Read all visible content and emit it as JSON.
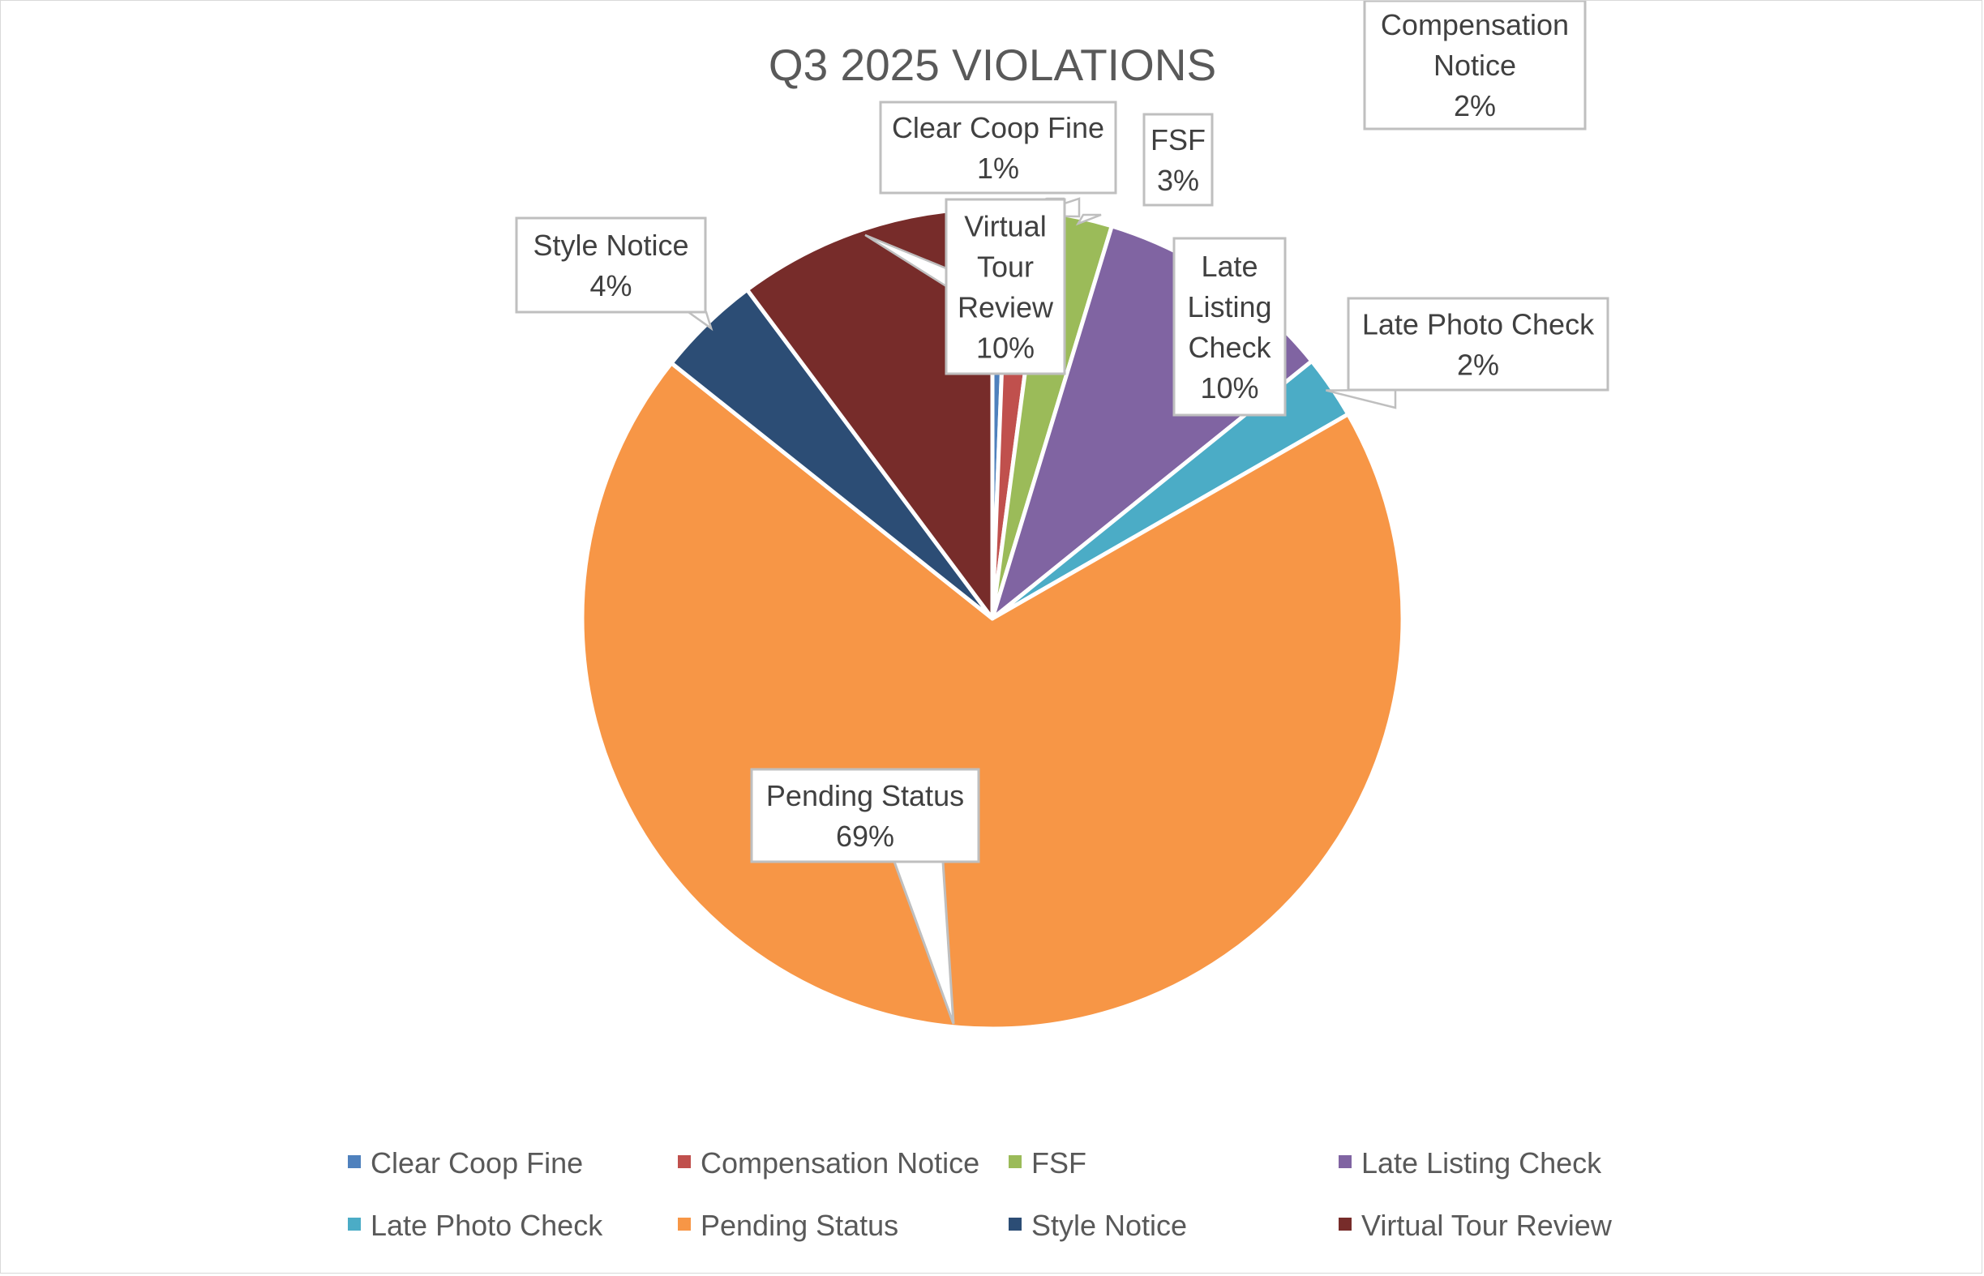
{
  "chart_data": {
    "type": "pie",
    "title": "Q3 2025 VIOLATIONS",
    "slices": [
      {
        "name": "Clear Coop Fine",
        "value": 0.6,
        "label": "1%",
        "color": "#4F81BD"
      },
      {
        "name": "Compensation Notice",
        "value": 1.5,
        "label": "2%",
        "color": "#C0504D"
      },
      {
        "name": "FSF",
        "value": 2.6,
        "label": "3%",
        "color": "#9BBB59"
      },
      {
        "name": "Late Listing Check",
        "value": 9.5,
        "label": "10%",
        "color": "#8064A2"
      },
      {
        "name": "Late Photo Check",
        "value": 2.5,
        "label": "2%",
        "color": "#4BACC6"
      },
      {
        "name": "Pending Status",
        "value": 69.0,
        "label": "69%",
        "color": "#F79646"
      },
      {
        "name": "Style Notice",
        "value": 4.1,
        "label": "4%",
        "color": "#2C4D75"
      },
      {
        "name": "Virtual Tour Review",
        "value": 10.2,
        "label": "10%",
        "color": "#772C2A"
      }
    ],
    "legend_position": "bottom",
    "data_labels": "callouts"
  }
}
